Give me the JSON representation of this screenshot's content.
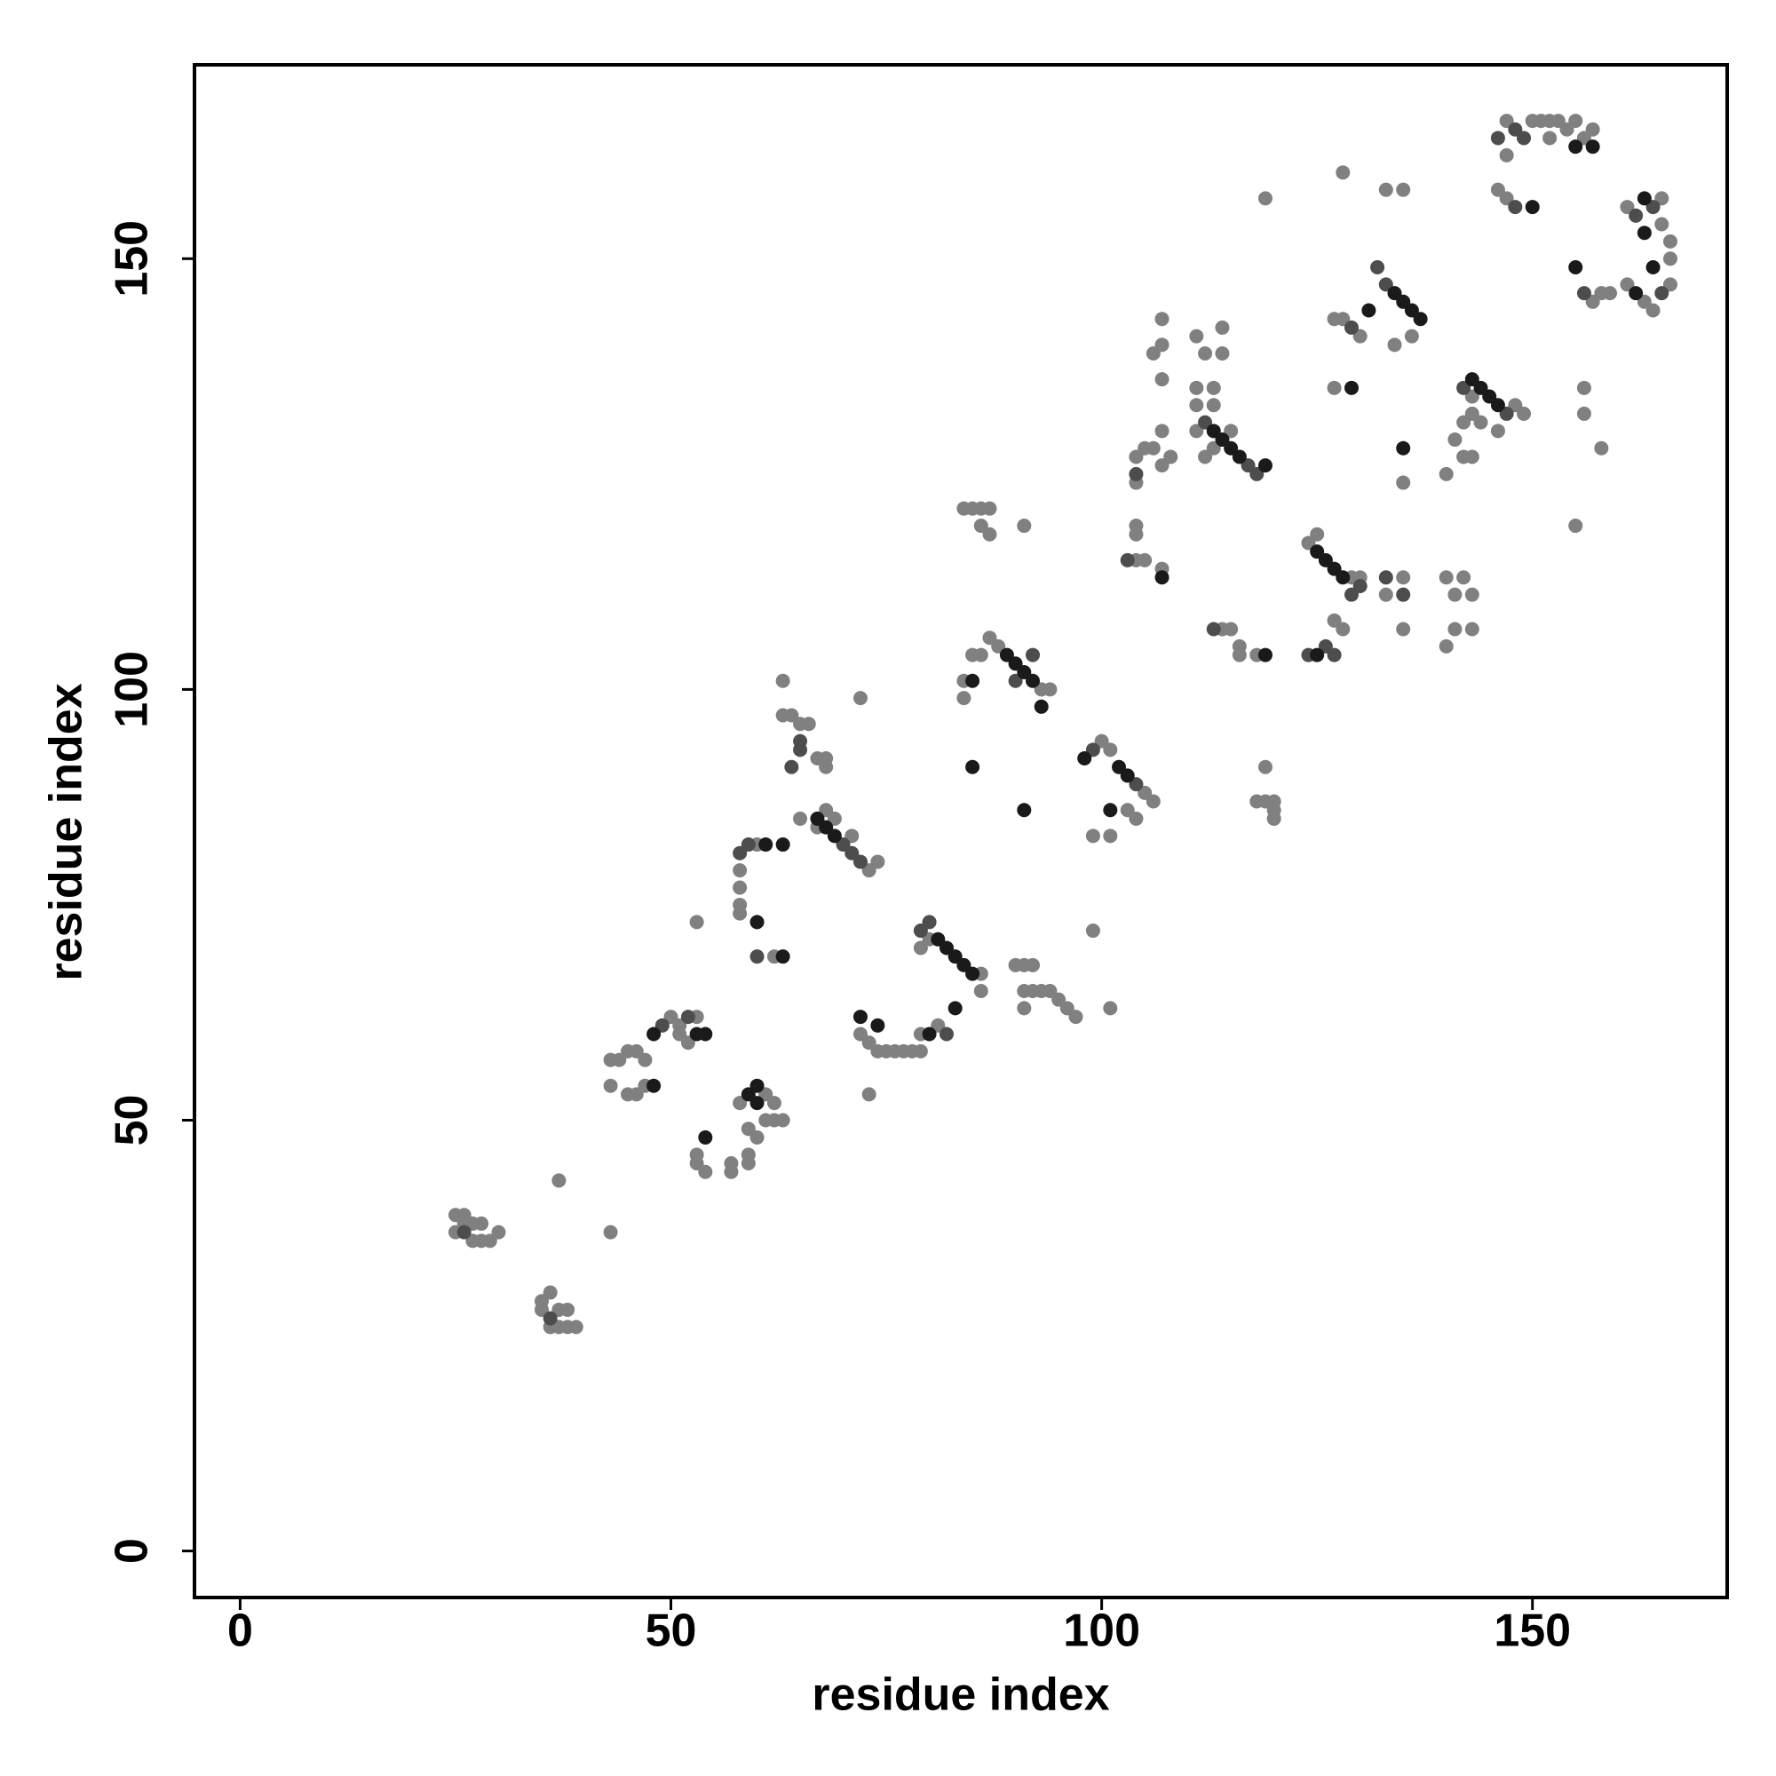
{
  "chart_data": {
    "type": "scatter",
    "xlabel": "residue index",
    "ylabel": "residue index",
    "xlim": [
      -5.3,
      172.6
    ],
    "ylim": [
      -5.4,
      172.5
    ],
    "xticks": [
      0,
      50,
      100,
      150
    ],
    "yticks": [
      0,
      50,
      100,
      150
    ],
    "series": [
      {
        "color": "#808080",
        "x": [
          25,
          26,
          27,
          28,
          25,
          27,
          28,
          29,
          30,
          26,
          35,
          35,
          36,
          37,
          37,
          38,
          38,
          39,
          36,
          37,
          43,
          43,
          44,
          45,
          46,
          47,
          43,
          45,
          46,
          47,
          50,
          51,
          53,
          52,
          51,
          53,
          53,
          53,
          54,
          57,
          57,
          59,
          59,
          61,
          62,
          59,
          60,
          62,
          63,
          58,
          61,
          58,
          58,
          58,
          58,
          62,
          60,
          63,
          64,
          65,
          66,
          67,
          68,
          68,
          63,
          65,
          73,
          74,
          68,
          69,
          71,
          67,
          72,
          73,
          73,
          74,
          75,
          76,
          77,
          78,
          79,
          72,
          80,
          79,
          86,
          86,
          81,
          79,
          90,
          91,
          92,
          91,
          92,
          93,
          94,
          95,
          96,
          97,
          91,
          99,
          101,
          84,
          84,
          85,
          86,
          87,
          88,
          94,
          93,
          84,
          85,
          86,
          87,
          86,
          87,
          91,
          100,
          101,
          105,
          106,
          103,
          104,
          99,
          101,
          104,
          105,
          106,
          104,
          104,
          104,
          104,
          105,
          107,
          107,
          108,
          107,
          107,
          107,
          107,
          106,
          113,
          115,
          111,
          112,
          111,
          112,
          114,
          111,
          113,
          111,
          113,
          114,
          119,
          114,
          115,
          116,
          116,
          118,
          119,
          118,
          119,
          120,
          120,
          120,
          128,
          127,
          125,
          124,
          129,
          130,
          127,
          128,
          130,
          136,
          127,
          134,
          135,
          133,
          135,
          135,
          128,
          133,
          135,
          140,
          141,
          143,
          140,
          142,
          143,
          141,
          140,
          142,
          141,
          143,
          142,
          143,
          148,
          149,
          146,
          144,
          143,
          156,
          156,
          158,
          155,
          147,
          150,
          151,
          152,
          153,
          154,
          155,
          156,
          157,
          147,
          146,
          147,
          152,
          157,
          158,
          159,
          161,
          163,
          164,
          166,
          166,
          166,
          165,
          161,
          165
        ],
        "y": [
          39,
          39,
          38,
          38,
          37,
          36,
          36,
          36,
          37,
          38,
          29,
          28,
          30,
          26,
          28,
          28,
          26,
          26,
          26,
          43,
          37,
          57,
          57,
          58,
          58,
          57,
          54,
          53,
          53,
          54,
          62,
          61,
          62,
          59,
          60,
          73,
          46,
          45,
          44,
          44,
          45,
          46,
          45,
          53,
          52,
          49,
          48,
          50,
          50,
          52,
          50,
          79,
          77,
          75,
          74,
          69,
          82,
          97,
          97,
          96,
          96,
          92,
          92,
          91,
          101,
          85,
          79,
          80,
          86,
          85,
          83,
          84,
          60,
          53,
          59,
          58,
          58,
          58,
          58,
          58,
          58,
          99,
          71,
          70,
          67,
          65,
          61,
          60,
          68,
          68,
          68,
          65,
          65,
          65,
          65,
          64,
          63,
          62,
          63,
          72,
          63,
          101,
          99,
          104,
          104,
          106,
          105,
          100,
          100,
          121,
          121,
          121,
          121,
          119,
          118,
          119,
          94,
          93,
          88,
          87,
          86,
          85,
          83,
          83,
          127,
          128,
          128,
          124,
          119,
          118,
          115,
          115,
          114,
          126,
          127,
          130,
          136,
          140,
          143,
          139,
          128,
          130,
          130,
          127,
          141,
          139,
          139,
          135,
          135,
          133,
          133,
          142,
          157,
          107,
          107,
          105,
          104,
          104,
          91,
          87,
          87,
          87,
          85,
          86,
          107,
          108,
          118,
          117,
          113,
          113,
          143,
          143,
          141,
          141,
          135,
          140,
          113,
          111,
          107,
          124,
          160,
          158,
          158,
          105,
          107,
          107,
          113,
          113,
          111,
          111,
          125,
          127,
          129,
          127,
          131,
          132,
          133,
          132,
          130,
          131,
          134,
          135,
          132,
          128,
          119,
          166,
          166,
          166,
          166,
          166,
          165,
          166,
          164,
          165,
          162,
          158,
          157,
          164,
          145,
          146,
          146,
          147,
          145,
          144,
          147,
          150,
          152,
          154,
          156,
          157
        ]
      },
      {
        "color": "#4d4d4d",
        "x": [
          26,
          36,
          49,
          52,
          58,
          59,
          60,
          65,
          65,
          64,
          70,
          71,
          72,
          79,
          80,
          82,
          90,
          92,
          99,
          104,
          104,
          103,
          112,
          117,
          118,
          113,
          126,
          127,
          124,
          129,
          130,
          133,
          132,
          129,
          133,
          135,
          142,
          147,
          148,
          149,
          146,
          148,
          156,
          164,
          162,
          165
        ],
        "y": [
          37,
          27,
          61,
          62,
          81,
          82,
          69,
          94,
          93,
          91,
          82,
          81,
          80,
          72,
          73,
          60,
          101,
          104,
          93,
          89,
          125,
          115,
          131,
          126,
          125,
          107,
          105,
          104,
          104,
          111,
          112,
          147,
          149,
          142,
          113,
          111,
          135,
          132,
          165,
          164,
          164,
          156,
          146,
          156,
          155,
          146
        ]
      },
      {
        "color": "#1a1a1a",
        "x": [
          48,
          48,
          53,
          54,
          54,
          59,
          60,
          60,
          61,
          63,
          60,
          63,
          67,
          68,
          69,
          72,
          74,
          81,
          82,
          83,
          84,
          85,
          80,
          83,
          85,
          85,
          91,
          89,
          90,
          91,
          92,
          93,
          98,
          102,
          103,
          101,
          107,
          113,
          114,
          115,
          116,
          119,
          119,
          125,
          128,
          127,
          126,
          125,
          131,
          134,
          135,
          136,
          137,
          129,
          135,
          143,
          144,
          145,
          146,
          150,
          155,
          157,
          155,
          162,
          163,
          163,
          164
        ],
        "y": [
          54,
          60,
          60,
          60,
          48,
          53,
          54,
          52,
          82,
          82,
          73,
          69,
          85,
          84,
          83,
          62,
          61,
          71,
          70,
          69,
          68,
          67,
          60,
          63,
          101,
          91,
          86,
          104,
          103,
          102,
          101,
          98,
          92,
          91,
          90,
          86,
          113,
          130,
          129,
          128,
          127,
          126,
          104,
          104,
          113,
          114,
          115,
          116,
          144,
          146,
          145,
          144,
          143,
          135,
          128,
          136,
          135,
          134,
          133,
          156,
          163,
          163,
          149,
          146,
          157,
          153,
          149
        ]
      }
    ]
  }
}
